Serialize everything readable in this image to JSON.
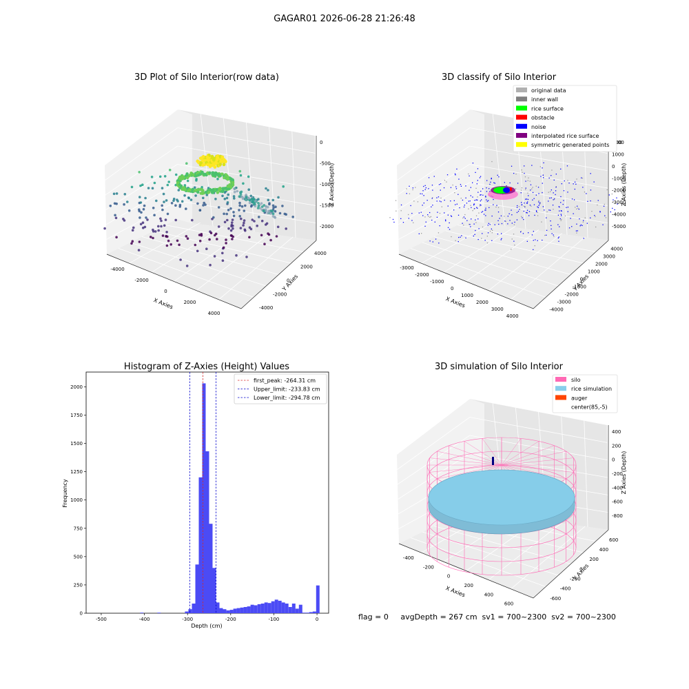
{
  "suptitle": "GAGAR01 2026-06-28 21:26:48",
  "footer": "flag = 0     avgDepth = 267 cm  sv1 = 700~2300  sv2 = 700~2300",
  "chart_data": [
    {
      "type": "scatter",
      "title": "3D Plot of Silo Interior(row data)",
      "xlabel": "X Axies",
      "ylabel": "Y Axies",
      "zlabel": "Z Axies (Depth)",
      "xticks": [
        "-4000",
        "-2000",
        "0",
        "2000",
        "4000"
      ],
      "yticks": [
        "-4000",
        "-2000",
        "0",
        "2000",
        "4000"
      ],
      "zticks": [
        "0",
        "-500",
        "-1000",
        "-1500",
        "-2000"
      ],
      "colormap": "viridis"
    },
    {
      "type": "scatter",
      "title": "3D classify of Silo Interior",
      "xlabel": "X Axies",
      "ylabel": "Y Axies",
      "zlabel": "Z Axies (Depth)",
      "xticks": [
        "-3000",
        "-2000",
        "-1000",
        "0",
        "1000",
        "2000",
        "3000",
        "4000"
      ],
      "yticks": [
        "-4000",
        "-3000",
        "-2000",
        "-1000",
        "0",
        "1000",
        "2000",
        "3000",
        "4000"
      ],
      "zticks": [
        "2000",
        "1000",
        "0",
        "-1000",
        "-2000",
        "-3000",
        "-4000",
        "-5000"
      ],
      "ztop_label": "000",
      "legend": [
        {
          "name": "original data",
          "color": "#b0b0b0"
        },
        {
          "name": "inner wall",
          "color": "#808080"
        },
        {
          "name": "rice surface",
          "color": "#00ff00"
        },
        {
          "name": "obstacle",
          "color": "#ff0000"
        },
        {
          "name": "noise",
          "color": "#0000ff"
        },
        {
          "name": "interpolated rice surface",
          "color": "#800080"
        },
        {
          "name": "symmetric generated points",
          "color": "#ffff00"
        }
      ],
      "legend_position": "top-right"
    },
    {
      "type": "bar",
      "title": "Histogram of Z-Axies (Height) Values",
      "xlabel": "Depth (cm)",
      "ylabel": "Frequency",
      "xlim": [
        -535,
        27
      ],
      "ylim": [
        0,
        2130
      ],
      "xticks": [
        -500,
        -400,
        -300,
        -200,
        -100,
        0
      ],
      "yticks": [
        0,
        250,
        500,
        750,
        1000,
        1250,
        1500,
        1750,
        2000
      ],
      "bin_width": 8,
      "bins": [
        [
          -410,
          5
        ],
        [
          -370,
          5
        ],
        [
          -306,
          15
        ],
        [
          -298,
          35
        ],
        [
          -290,
          85
        ],
        [
          -282,
          430
        ],
        [
          -274,
          1200
        ],
        [
          -266,
          2030
        ],
        [
          -258,
          1430
        ],
        [
          -250,
          790
        ],
        [
          -242,
          400
        ],
        [
          -234,
          95
        ],
        [
          -226,
          45
        ],
        [
          -218,
          35
        ],
        [
          -210,
          25
        ],
        [
          -202,
          30
        ],
        [
          -194,
          40
        ],
        [
          -186,
          45
        ],
        [
          -178,
          50
        ],
        [
          -170,
          55
        ],
        [
          -162,
          60
        ],
        [
          -154,
          75
        ],
        [
          -146,
          70
        ],
        [
          -138,
          80
        ],
        [
          -130,
          85
        ],
        [
          -122,
          95
        ],
        [
          -114,
          90
        ],
        [
          -106,
          105
        ],
        [
          -98,
          120
        ],
        [
          -90,
          110
        ],
        [
          -82,
          95
        ],
        [
          -74,
          85
        ],
        [
          -66,
          55
        ],
        [
          -58,
          85
        ],
        [
          -50,
          40
        ],
        [
          -42,
          75
        ],
        [
          -34,
          5
        ],
        [
          -26,
          5
        ],
        [
          -18,
          10
        ],
        [
          -10,
          15
        ],
        [
          -2,
          245
        ]
      ],
      "bar_color": "#4b4bf5",
      "lines": [
        {
          "label": "first_peak: -264.31 cm",
          "x": -264.31,
          "color": "#d62728"
        },
        {
          "label": "Upper_limit: -233.83 cm",
          "x": -233.83,
          "color": "#0000cc"
        },
        {
          "label": "Lower_limit: -294.78 cm",
          "x": -294.78,
          "color": "#0000cc"
        }
      ],
      "legend_position": "top-right"
    },
    {
      "type": "scatter",
      "title": "3D simulation of Silo Interior",
      "xlabel": "X Axies",
      "ylabel": "Y Axies",
      "zlabel": "Z Axies (Depth)",
      "xticks": [
        "-400",
        "-200",
        "0",
        "200",
        "400",
        "600"
      ],
      "yticks": [
        "-600",
        "-400",
        "-200",
        "0",
        "200",
        "400",
        "600"
      ],
      "zticks": [
        "400",
        "200",
        "0",
        "-200",
        "-400",
        "-600",
        "-800"
      ],
      "legend": [
        {
          "name": "silo",
          "color": "#ff69b4"
        },
        {
          "name": "rice simulation",
          "color": "#87ceeb"
        },
        {
          "name": "auger",
          "color": "#ff4500"
        },
        {
          "name": "center(85,-5)",
          "color": "#ffffff"
        }
      ],
      "legend_position": "top-right"
    }
  ]
}
